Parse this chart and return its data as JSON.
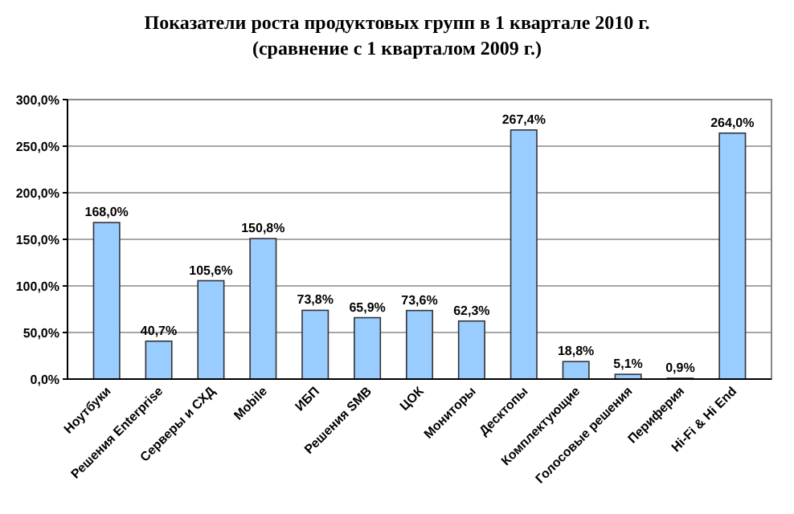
{
  "chart_data": {
    "type": "bar",
    "title": "Показатели роста продуктовых групп в 1 квартале 2010 г.",
    "subtitle": "(сравнение с 1 кварталом 2009 г.)",
    "categories": [
      "Ноутбуки",
      "Решения Enterprise",
      "Серверы и СХД",
      "Mobile",
      "ИБП",
      "Решения SMB",
      "ЦОК",
      "Мониторы",
      "Десктопы",
      "Комплектующие",
      "Голосовые решения",
      "Периферия",
      "Hi-Fi & Hi End"
    ],
    "values": [
      168.0,
      40.7,
      105.6,
      150.8,
      73.8,
      65.9,
      73.6,
      62.3,
      267.4,
      18.8,
      5.1,
      0.9,
      264.0
    ],
    "value_labels": [
      "168,0%",
      "40,7%",
      "105,6%",
      "150,8%",
      "73,8%",
      "65,9%",
      "73,6%",
      "62,3%",
      "267,4%",
      "18,8%",
      "5,1%",
      "0,9%",
      "264,0%"
    ],
    "color": "#99ccff",
    "ylim": [
      0,
      300
    ],
    "yticks": [
      {
        "value": 0,
        "label": "0,0%"
      },
      {
        "value": 50,
        "label": "50,0%"
      },
      {
        "value": 100,
        "label": "100,0%"
      },
      {
        "value": 150,
        "label": "150,0%"
      },
      {
        "value": 200,
        "label": "200,0%"
      },
      {
        "value": 250,
        "label": "250,0%"
      },
      {
        "value": 300,
        "label": "300,0%"
      }
    ],
    "grid": "y"
  }
}
